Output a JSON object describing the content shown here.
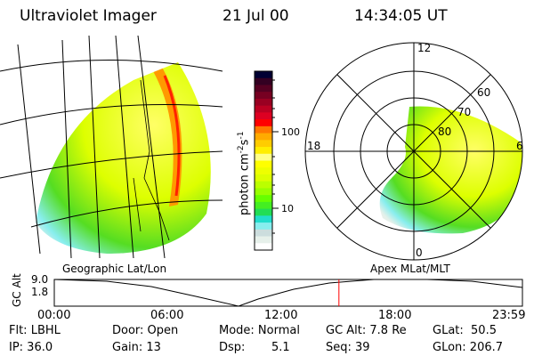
{
  "header": {
    "instrument": "Ultraviolet Imager",
    "date": "21 Jul 00",
    "time": "14:34:05 UT"
  },
  "colorbar": {
    "label": "photon cm",
    "label_sup1": "-2",
    "label_mid": "s",
    "label_sup2": "-1",
    "ticks": [
      "100",
      "10"
    ],
    "colors": [
      "#000033",
      "#330022",
      "#550022",
      "#770022",
      "#990022",
      "#bb0022",
      "#dd0022",
      "#ff0000",
      "#ff7700",
      "#ffaa00",
      "#ffcc00",
      "#ffee00",
      "#ffff88",
      "#ffff00",
      "#eeff00",
      "#ddff00",
      "#bbff00",
      "#99ff00",
      "#66ff00",
      "#44ee22",
      "#22dd55",
      "#22ddcc",
      "#88eeee",
      "#ccdddd",
      "#e6f0ea",
      "#ffffff"
    ]
  },
  "polar": {
    "mlt_labels": {
      "top": "12",
      "left": "18",
      "right": "6",
      "bottom": "0"
    },
    "lat_labels": [
      "80",
      "70",
      "60"
    ]
  },
  "map_labels": {
    "left": "Geographic Lat/Lon",
    "right": "Apex MLat/MLT"
  },
  "altitude_strip": {
    "ylabel": "GC Alt",
    "ymax": "9.0",
    "ymin": "1.8",
    "xticks": [
      "00:00",
      "06:00",
      "12:00",
      "18:00",
      "23:59"
    ],
    "current_time_fraction": 0.608,
    "marker_color": "#ff0000"
  },
  "status": {
    "flt": "Flt: LBHL",
    "ip": "IP: 36.0",
    "door": "Door: Open",
    "gain": "Gain: 13",
    "mode": "Mode: Normal",
    "dsp_label": "Dsp:",
    "dsp_value": "5.1",
    "gc_alt": "GC Alt: 7.8 Re",
    "seq": "Seq: 39",
    "glat": "GLat:  50.5",
    "glon": "GLon: 206.7"
  }
}
